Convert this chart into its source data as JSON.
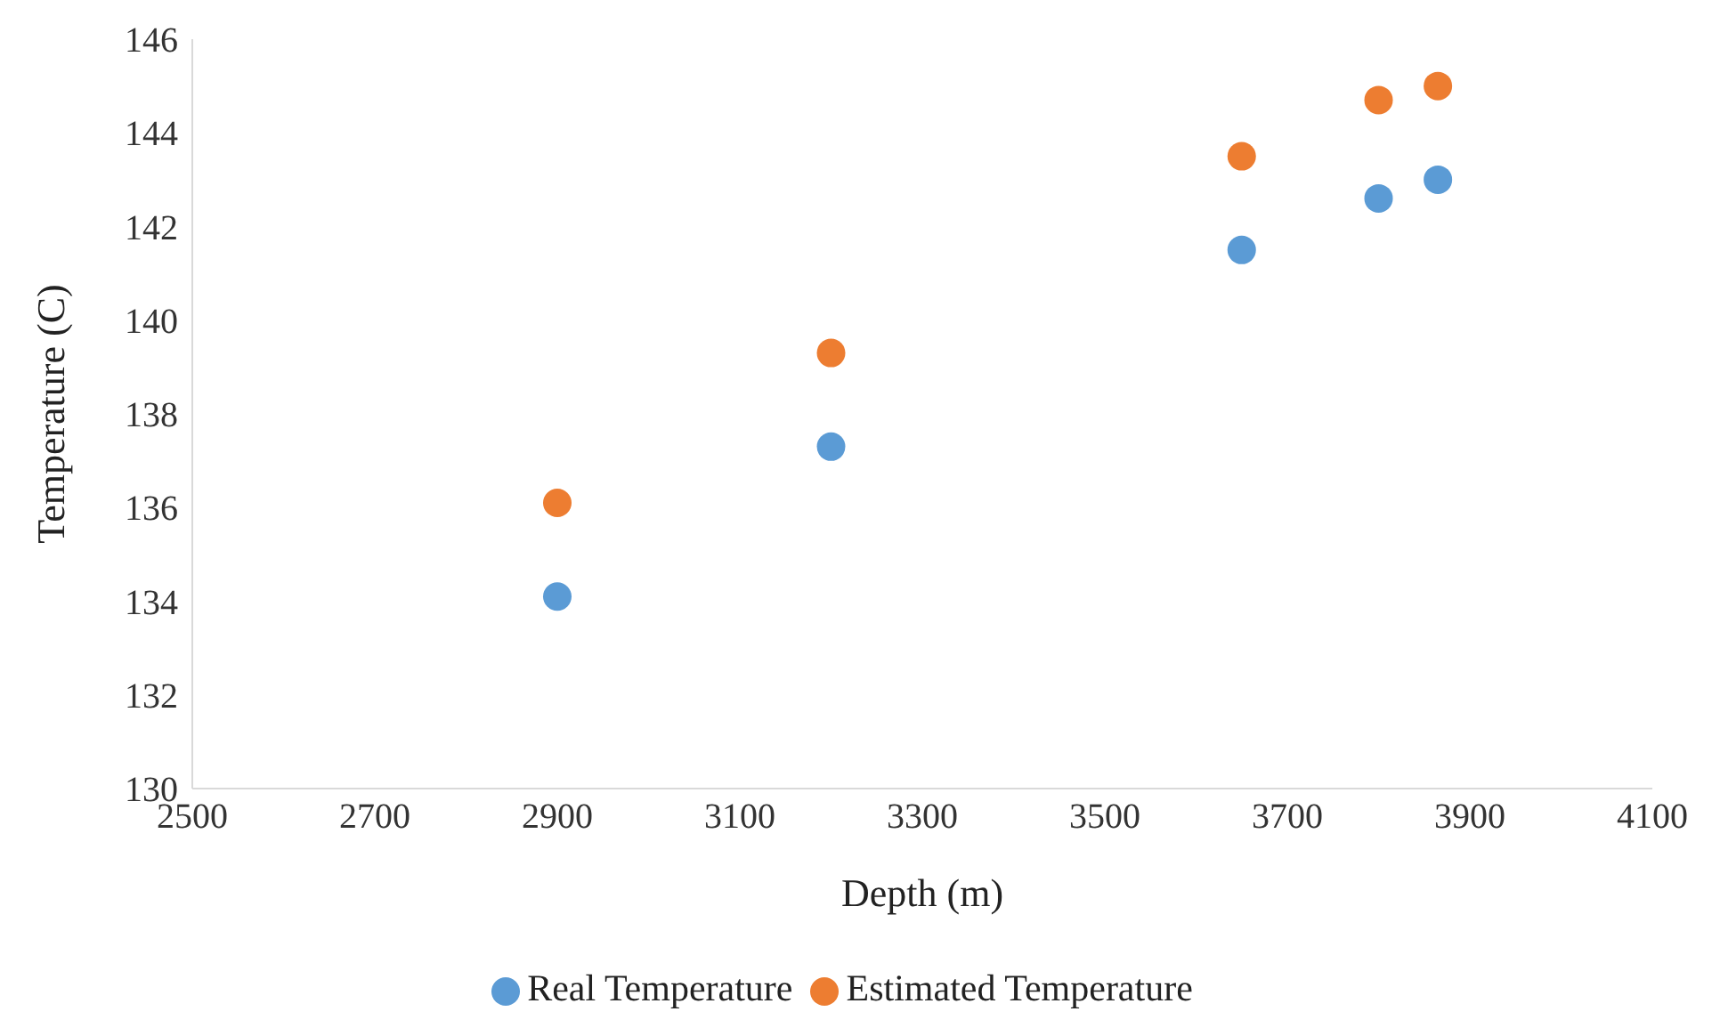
{
  "chart_data": {
    "type": "scatter",
    "xlabel": "Depth (m)",
    "ylabel": "Temperature (C)",
    "series": [
      {
        "name": "Real Temperature",
        "color": "#5b9bd5",
        "x": [
          2900,
          3200,
          3650,
          3800,
          3865
        ],
        "values": [
          134.1,
          137.3,
          141.5,
          142.6,
          143.0
        ]
      },
      {
        "name": "Estimated Temperature",
        "color": "#ed7d31",
        "x": [
          2900,
          3200,
          3650,
          3800,
          3865
        ],
        "values": [
          136.1,
          139.3,
          143.5,
          144.7,
          145.0
        ]
      }
    ],
    "xlim": [
      2500,
      4100
    ],
    "xticks": [
      2500,
      2700,
      2900,
      3100,
      3300,
      3500,
      3700,
      3900,
      4100
    ],
    "ylim": [
      130,
      146
    ],
    "yticks": [
      130,
      132,
      134,
      136,
      138,
      140,
      142,
      144,
      146
    ],
    "grid": false,
    "legend": "bottom",
    "marker": "circle"
  }
}
